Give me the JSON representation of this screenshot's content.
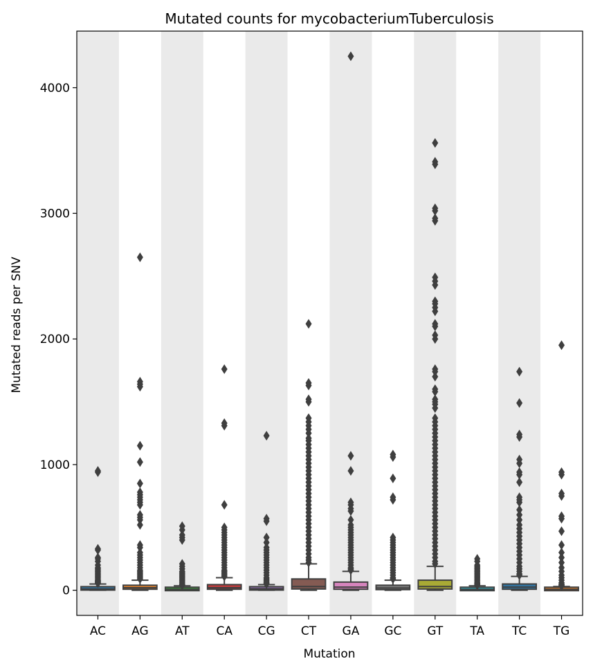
{
  "chart_data": {
    "type": "box",
    "title": "Mutated counts for mycobacteriumTuberculosis",
    "xlabel": "Mutation",
    "ylabel": "Mutated reads per SNV",
    "categories": [
      "AC",
      "AG",
      "AT",
      "CA",
      "CG",
      "CT",
      "GA",
      "GC",
      "GT",
      "TA",
      "TC",
      "TG"
    ],
    "ylim": [
      -200,
      4450
    ],
    "yticks": [
      0,
      1000,
      2000,
      3000,
      4000
    ],
    "alternating_shaded_columns": true,
    "shade_color": "#eaeaea",
    "boxes": [
      {
        "category": "AC",
        "color": "#3274a1",
        "q1": 5,
        "median": 10,
        "q3": 25,
        "whisker_low": 0,
        "whisker_high": 50,
        "outliers": [
          940,
          950,
          320,
          330,
          260,
          250,
          230,
          200,
          180,
          170,
          160,
          150,
          140,
          130,
          120,
          110,
          100,
          90,
          80,
          75,
          70,
          65,
          60,
          55
        ]
      },
      {
        "category": "AG",
        "color": "#e1812c",
        "q1": 8,
        "median": 20,
        "q3": 40,
        "whisker_low": 0,
        "whisker_high": 80,
        "outliers": [
          2650,
          1660,
          1640,
          1620,
          1150,
          1020,
          850,
          780,
          760,
          740,
          720,
          700,
          680,
          600,
          580,
          560,
          520,
          360,
          340,
          300,
          280,
          260,
          240,
          220,
          200,
          180,
          160,
          150,
          140,
          130,
          120,
          110,
          100,
          90
        ]
      },
      {
        "category": "AT",
        "color": "#3a923a",
        "q1": 3,
        "median": 8,
        "q3": 18,
        "whisker_low": 0,
        "whisker_high": 35,
        "outliers": [
          510,
          480,
          440,
          420,
          400,
          210,
          190,
          170,
          150,
          140,
          130,
          120,
          110,
          100,
          90,
          80,
          70,
          60,
          50,
          45,
          40
        ]
      },
      {
        "category": "CA",
        "color": "#c03d3e",
        "q1": 8,
        "median": 20,
        "q3": 45,
        "whisker_low": 0,
        "whisker_high": 100,
        "outliers": [
          1760,
          1330,
          1310,
          680,
          500,
          480,
          460,
          440,
          420,
          400,
          380,
          360,
          340,
          320,
          300,
          280,
          260,
          240,
          220,
          200,
          180,
          160,
          150,
          140,
          130,
          120,
          110
        ]
      },
      {
        "category": "CG",
        "color": "#9372b2",
        "q1": 5,
        "median": 12,
        "q3": 25,
        "whisker_low": 0,
        "whisker_high": 45,
        "outliers": [
          1230,
          570,
          550,
          420,
          380,
          340,
          320,
          300,
          280,
          260,
          240,
          220,
          200,
          180,
          160,
          140,
          120,
          100,
          90,
          80,
          70,
          60,
          55,
          50
        ]
      },
      {
        "category": "CT",
        "color": "#845b53",
        "q1": 10,
        "median": 30,
        "q3": 90,
        "whisker_low": 0,
        "whisker_high": 210,
        "outliers": [
          2120,
          1650,
          1630,
          1520,
          1500,
          1370,
          1340,
          1310,
          1280,
          1250,
          1210,
          1190,
          1160,
          1130,
          1100,
          1070,
          1040,
          1010,
          980,
          950,
          920,
          890,
          860,
          830,
          800,
          770,
          740,
          710,
          680,
          650,
          620,
          590,
          560,
          530,
          500,
          470,
          440,
          410,
          380,
          350,
          320,
          290,
          260,
          240,
          220
        ]
      },
      {
        "category": "GA",
        "color": "#d684bd",
        "q1": 8,
        "median": 25,
        "q3": 65,
        "whisker_low": 0,
        "whisker_high": 150,
        "outliers": [
          4250,
          1070,
          950,
          700,
          680,
          650,
          630,
          560,
          520,
          500,
          480,
          460,
          440,
          420,
          400,
          380,
          360,
          340,
          320,
          300,
          280,
          260,
          240,
          220,
          200,
          180,
          170,
          160
        ]
      },
      {
        "category": "GC",
        "color": "#7f7f7f",
        "q1": 5,
        "median": 18,
        "q3": 40,
        "whisker_low": 0,
        "whisker_high": 80,
        "outliers": [
          1080,
          1060,
          890,
          740,
          720,
          420,
          400,
          380,
          360,
          340,
          320,
          300,
          280,
          260,
          240,
          220,
          200,
          180,
          160,
          140,
          120,
          100,
          90
        ]
      },
      {
        "category": "GT",
        "color": "#a9aa35",
        "q1": 10,
        "median": 30,
        "q3": 80,
        "whisker_low": 0,
        "whisker_high": 190,
        "outliers": [
          3560,
          3410,
          3390,
          3040,
          3020,
          2960,
          2940,
          2490,
          2460,
          2430,
          2300,
          2280,
          2250,
          2220,
          2120,
          2100,
          2030,
          2000,
          1760,
          1740,
          1700,
          1600,
          1580,
          1520,
          1500,
          1480,
          1450,
          1370,
          1340,
          1310,
          1280,
          1250,
          1220,
          1190,
          1160,
          1130,
          1100,
          1070,
          1040,
          1010,
          980,
          950,
          920,
          890,
          860,
          830,
          800,
          770,
          740,
          710,
          680,
          650,
          620,
          590,
          560,
          530,
          500,
          470,
          440,
          410,
          380,
          350,
          320,
          290,
          260,
          230,
          210
        ]
      },
      {
        "category": "TA",
        "color": "#2eb0c2",
        "q1": 3,
        "median": 8,
        "q3": 18,
        "whisker_low": 0,
        "whisker_high": 35,
        "outliers": [
          250,
          230,
          200,
          190,
          180,
          170,
          160,
          150,
          140,
          130,
          120,
          110,
          100,
          90,
          80,
          70,
          60,
          55,
          50,
          45,
          40
        ]
      },
      {
        "category": "TC",
        "color": "#3274a1",
        "q1": 8,
        "median": 25,
        "q3": 50,
        "whisker_low": 0,
        "whisker_high": 110,
        "outliers": [
          1740,
          1490,
          1240,
          1220,
          1040,
          1010,
          940,
          920,
          860,
          740,
          720,
          700,
          640,
          600,
          560,
          520,
          490,
          460,
          430,
          400,
          370,
          340,
          310,
          280,
          250,
          220,
          190,
          170,
          150,
          130,
          120
        ]
      },
      {
        "category": "TG",
        "color": "#e1812c",
        "q1": 3,
        "median": 8,
        "q3": 18,
        "whisker_low": 0,
        "whisker_high": 30,
        "outliers": [
          1950,
          940,
          920,
          770,
          750,
          590,
          570,
          470,
          360,
          300,
          260,
          220,
          180,
          150,
          120,
          100,
          80,
          60,
          50,
          45,
          40,
          35
        ]
      }
    ]
  }
}
